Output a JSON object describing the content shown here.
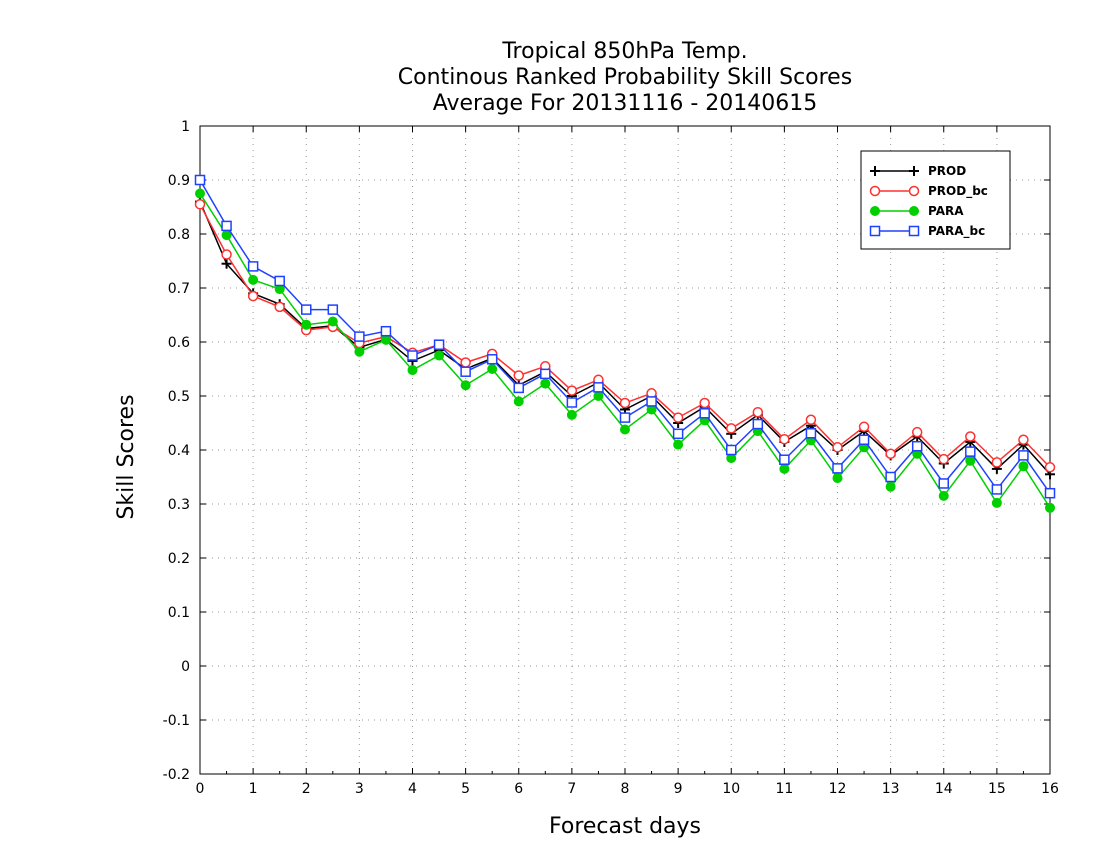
{
  "chart_data": {
    "type": "line",
    "title": [
      "Tropical 850hPa Temp.",
      "Continous Ranked Probability Skill Scores",
      "Average For 20131116 - 20140615"
    ],
    "xlabel": "Forecast days",
    "ylabel": "Skill Scores",
    "xlim": [
      0,
      16
    ],
    "ylim": [
      -0.2,
      1
    ],
    "xticks": [
      "0",
      "1",
      "2",
      "3",
      "4",
      "5",
      "6",
      "7",
      "8",
      "9",
      "10",
      "11",
      "12",
      "13",
      "14",
      "15",
      "16"
    ],
    "yticks": [
      "1",
      "0.9",
      "0.8",
      "0.7",
      "0.6",
      "0.5",
      "0.4",
      "0.3",
      "0.2",
      "0.1",
      "0",
      "-0.1",
      "-0.2"
    ],
    "grid": true,
    "legend_position": "top-right",
    "x": [
      0,
      0.5,
      1,
      1.5,
      2,
      2.5,
      3,
      3.5,
      4,
      4.5,
      5,
      5.5,
      6,
      6.5,
      7,
      7.5,
      8,
      8.5,
      9,
      9.5,
      10,
      10.5,
      11,
      11.5,
      12,
      12.5,
      13,
      13.5,
      14,
      14.5,
      15,
      15.5,
      16
    ],
    "series": [
      {
        "name": "PROD",
        "color": "#000000",
        "marker": "plus",
        "values": [
          0.86,
          0.745,
          0.69,
          0.67,
          0.625,
          0.63,
          0.59,
          0.605,
          0.565,
          0.585,
          0.55,
          0.57,
          0.52,
          0.545,
          0.5,
          0.525,
          0.475,
          0.5,
          0.45,
          0.48,
          0.43,
          0.465,
          0.415,
          0.445,
          0.4,
          0.435,
          0.39,
          0.425,
          0.375,
          0.415,
          0.365,
          0.41,
          0.355
        ]
      },
      {
        "name": "PROD_bc",
        "color": "#ff3030",
        "marker": "open-circle",
        "values": [
          0.855,
          0.762,
          0.685,
          0.665,
          0.622,
          0.628,
          0.598,
          0.61,
          0.58,
          0.595,
          0.562,
          0.578,
          0.538,
          0.555,
          0.51,
          0.53,
          0.487,
          0.505,
          0.46,
          0.487,
          0.44,
          0.47,
          0.42,
          0.456,
          0.405,
          0.443,
          0.393,
          0.433,
          0.383,
          0.425,
          0.377,
          0.419,
          0.368
        ]
      },
      {
        "name": "PARA",
        "color": "#00d000",
        "marker": "filled-circle",
        "values": [
          0.875,
          0.798,
          0.715,
          0.698,
          0.632,
          0.638,
          0.582,
          0.604,
          0.548,
          0.575,
          0.52,
          0.55,
          0.49,
          0.523,
          0.465,
          0.5,
          0.438,
          0.475,
          0.41,
          0.455,
          0.385,
          0.435,
          0.365,
          0.418,
          0.348,
          0.405,
          0.332,
          0.393,
          0.315,
          0.38,
          0.302,
          0.37,
          0.293
        ]
      },
      {
        "name": "PARA_bc",
        "color": "#2040ff",
        "marker": "open-square",
        "values": [
          0.9,
          0.815,
          0.74,
          0.713,
          0.66,
          0.66,
          0.61,
          0.62,
          0.575,
          0.595,
          0.545,
          0.568,
          0.515,
          0.541,
          0.488,
          0.516,
          0.46,
          0.49,
          0.43,
          0.468,
          0.4,
          0.448,
          0.382,
          0.431,
          0.366,
          0.419,
          0.35,
          0.407,
          0.338,
          0.397,
          0.327,
          0.39,
          0.32
        ]
      }
    ]
  }
}
